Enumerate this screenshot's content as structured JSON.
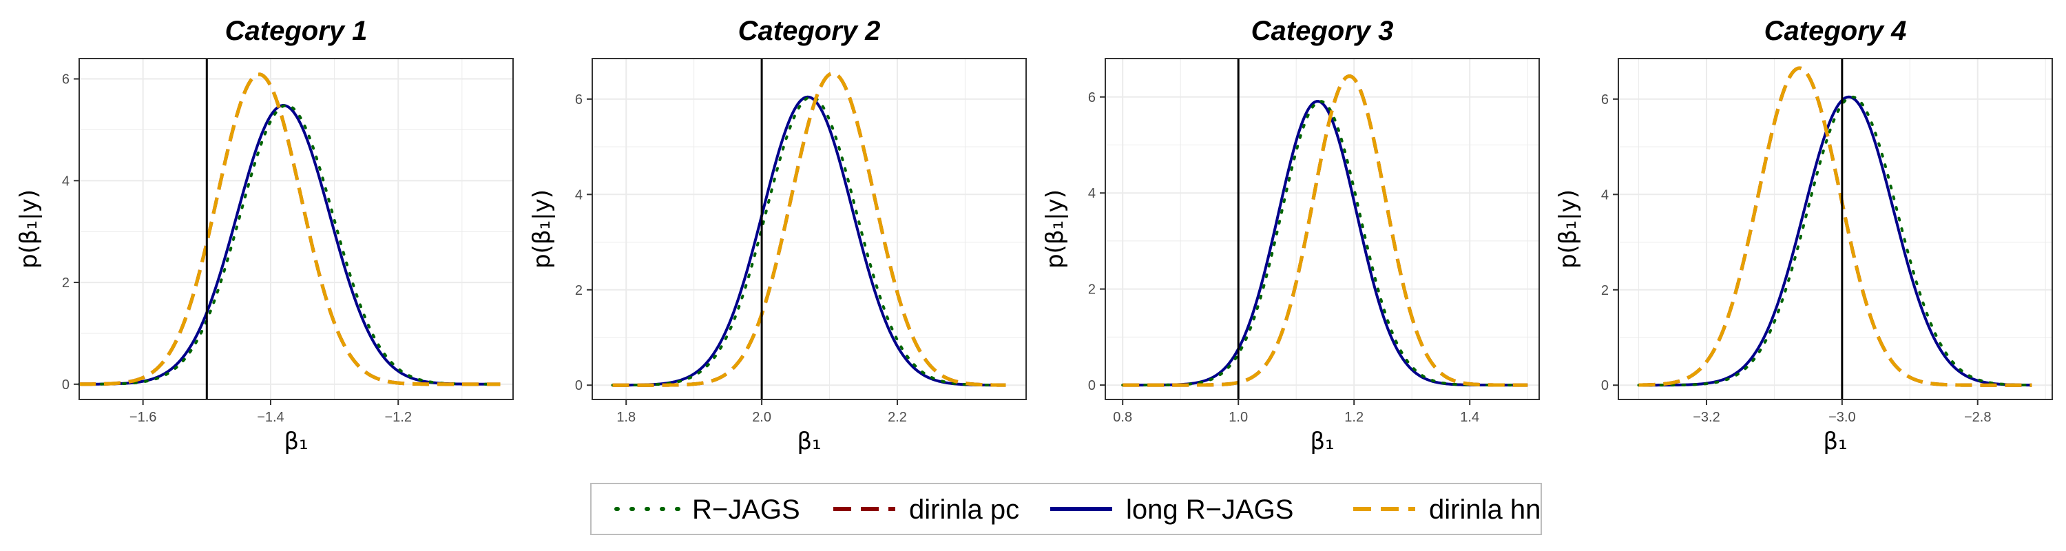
{
  "chart_data": [
    {
      "type": "line",
      "title": "Category 1",
      "xlabel": "β₁",
      "ylabel": "p(β₁|y)",
      "xlim": [
        -1.7,
        -1.02
      ],
      "ylim": [
        -0.3,
        6.4
      ],
      "xticks": [
        -1.6,
        -1.4,
        -1.2
      ],
      "xtick_labels": [
        "−1.6",
        "−1.4",
        "−1.2"
      ],
      "yticks": [
        0,
        2,
        4,
        6
      ],
      "ytick_labels": [
        "0",
        "2",
        "4",
        "6"
      ],
      "vline": -1.5,
      "x_range": [
        -1.7,
        -1.04
      ],
      "series": [
        {
          "name": "R−JAGS",
          "mean": -1.375,
          "sd": 0.0728
        },
        {
          "name": "dirinla pc",
          "mean": -1.418,
          "sd": 0.0655
        },
        {
          "name": "long R−JAGS",
          "mean": -1.38,
          "sd": 0.0728
        },
        {
          "name": "dirinla hn",
          "mean": -1.418,
          "sd": 0.0655
        }
      ]
    },
    {
      "type": "line",
      "title": "Category 2",
      "xlabel": "β₁",
      "ylabel": "p(β₁|y)",
      "xlim": [
        1.75,
        2.39
      ],
      "ylim": [
        -0.3,
        6.85
      ],
      "xticks": [
        1.8,
        2.0,
        2.2
      ],
      "xtick_labels": [
        "1.8",
        "2.0",
        "2.2"
      ],
      "yticks": [
        0,
        2,
        4,
        6
      ],
      "ytick_labels": [
        "0",
        "2",
        "4",
        "6"
      ],
      "vline": 2.0,
      "x_range": [
        1.78,
        2.36
      ],
      "series": [
        {
          "name": "R−JAGS",
          "mean": 2.073,
          "sd": 0.066
        },
        {
          "name": "dirinla pc",
          "mean": 2.105,
          "sd": 0.061
        },
        {
          "name": "long R−JAGS",
          "mean": 2.068,
          "sd": 0.066
        },
        {
          "name": "dirinla hn",
          "mean": 2.105,
          "sd": 0.061
        }
      ]
    },
    {
      "type": "line",
      "title": "Category 3",
      "xlabel": "β₁",
      "ylabel": "p(β₁|y)",
      "xlim": [
        0.77,
        1.52
      ],
      "ylim": [
        -0.3,
        6.8
      ],
      "xticks": [
        0.8,
        1.0,
        1.2,
        1.4
      ],
      "xtick_labels": [
        "0.8",
        "1.0",
        "1.2",
        "1.4"
      ],
      "yticks": [
        0,
        2,
        4,
        6
      ],
      "ytick_labels": [
        "0",
        "2",
        "4",
        "6"
      ],
      "vline": 1.0,
      "x_range": [
        0.8,
        1.5
      ],
      "series": [
        {
          "name": "R−JAGS",
          "mean": 1.142,
          "sd": 0.0675
        },
        {
          "name": "dirinla pc",
          "mean": 1.192,
          "sd": 0.062
        },
        {
          "name": "long R−JAGS",
          "mean": 1.137,
          "sd": 0.0675
        },
        {
          "name": "dirinla hn",
          "mean": 1.192,
          "sd": 0.062
        }
      ]
    },
    {
      "type": "line",
      "title": "Category 4",
      "xlabel": "β₁",
      "ylabel": "p(β₁|y)",
      "xlim": [
        -3.33,
        -2.69
      ],
      "ylim": [
        -0.3,
        6.85
      ],
      "xticks": [
        -3.2,
        -3.0,
        -2.8
      ],
      "xtick_labels": [
        "−3.2",
        "−3.0",
        "−2.8"
      ],
      "yticks": [
        0,
        2,
        4,
        6
      ],
      "ytick_labels": [
        "0",
        "2",
        "4",
        "6"
      ],
      "vline": -3.0,
      "x_range": [
        -3.3,
        -2.72
      ],
      "series": [
        {
          "name": "R−JAGS",
          "mean": -2.985,
          "sd": 0.066
        },
        {
          "name": "dirinla pc",
          "mean": -3.063,
          "sd": 0.06
        },
        {
          "name": "long R−JAGS",
          "mean": -2.99,
          "sd": 0.066
        },
        {
          "name": "dirinla hn",
          "mean": -3.063,
          "sd": 0.06
        }
      ]
    }
  ],
  "legend": {
    "position": "bottom",
    "items": [
      {
        "label": "R−JAGS",
        "color": "#006400",
        "style": "dotted"
      },
      {
        "label": "dirinla pc",
        "color": "#8B0000",
        "style": "dashed"
      },
      {
        "label": "long R−JAGS",
        "color": "#00008B",
        "style": "solid"
      },
      {
        "label": "dirinla hn",
        "color": "#E69F00",
        "style": "dashed"
      }
    ]
  },
  "colors": {
    "grid": "#ebebeb",
    "panel_border": "#333333",
    "vline": "#000000"
  }
}
